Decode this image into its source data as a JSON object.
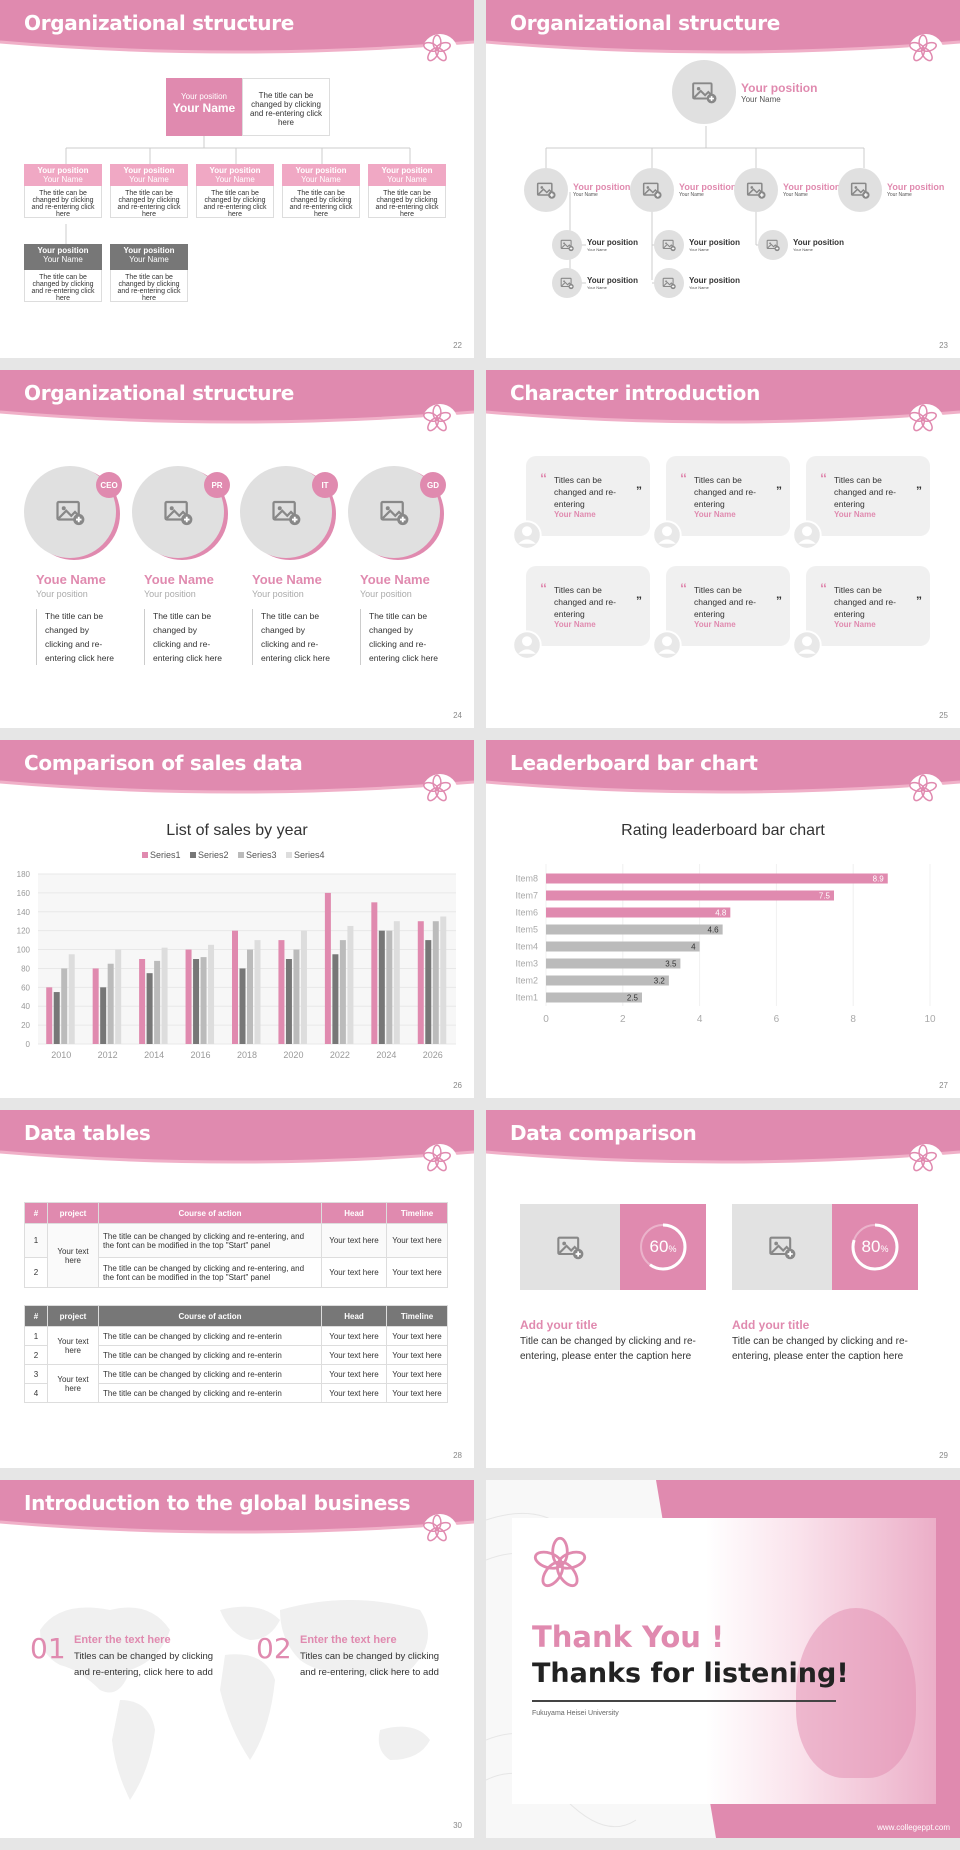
{
  "colors": {
    "accent": "#e08aaf",
    "accent_light": "#f0b0c8",
    "gray_dark": "#777777",
    "gray_mid": "#bbbbbb",
    "gray_light": "#dddddd"
  },
  "slides": {
    "s22": {
      "title": "Organizational structure",
      "page": "22",
      "top": {
        "position": "Your position",
        "name": "Your Name",
        "desc": "The title can be changed by clicking and re-entering click here"
      },
      "row1": [
        {
          "position": "Your position",
          "name": "Your Name",
          "desc": "The title can be changed by clicking and re-entering click here"
        },
        {
          "position": "Your position",
          "name": "Your Name",
          "desc": "The title can be changed by clicking and re-entering click here"
        },
        {
          "position": "Your position",
          "name": "Your Name",
          "desc": "The title can be changed by clicking and re-entering click here"
        },
        {
          "position": "Your position",
          "name": "Your Name",
          "desc": "The title can be changed by clicking and re-entering click here"
        },
        {
          "position": "Your position",
          "name": "Your Name",
          "desc": "The title can be changed by clicking and re-entering click here"
        }
      ],
      "row2": [
        {
          "position": "Your position",
          "name": "Your Name",
          "desc": "The title can be changed by clicking and re-entering click here"
        },
        {
          "position": "Your position",
          "name": "Your Name",
          "desc": "The title can be changed by clicking and re-entering click here"
        }
      ]
    },
    "s23": {
      "title": "Organizational structure",
      "page": "23",
      "top": {
        "position": "Your position",
        "name": "Your Name"
      },
      "mid": [
        {
          "position": "Your position",
          "name": "Your Name"
        },
        {
          "position": "Your position",
          "name": "Your Name"
        },
        {
          "position": "Your position",
          "name": "Your Name"
        },
        {
          "position": "Your position",
          "name": "Your Name"
        }
      ],
      "sub": [
        {
          "position": "Your position",
          "name": "Your Name"
        },
        {
          "position": "Your position",
          "name": "Your Name"
        },
        {
          "position": "Your position",
          "name": "Your Name"
        },
        {
          "position": "Your position",
          "name": "Your Name"
        },
        {
          "position": "Your position",
          "name": "Your Name"
        },
        {
          "position": "Your position",
          "name": "Your Name"
        }
      ]
    },
    "s24": {
      "title": "Organizational structure",
      "page": "24",
      "people": [
        {
          "badge": "CEO",
          "name": "Youe Name",
          "position": "Your position",
          "desc": "The title can be changed by clicking and re-entering click here"
        },
        {
          "badge": "PR",
          "name": "Youe Name",
          "position": "Your position",
          "desc": "The title can be changed by clicking and re-entering click here"
        },
        {
          "badge": "IT",
          "name": "Youe Name",
          "position": "Your position",
          "desc": "The title can be changed by clicking and re-entering click here"
        },
        {
          "badge": "GD",
          "name": "Youe Name",
          "position": "Your position",
          "desc": "The title can be changed by clicking and re-entering click here"
        }
      ]
    },
    "s25": {
      "title": "Character introduction",
      "page": "25",
      "cards": [
        {
          "text": "Titles can be changed and re-entering",
          "name": "Your Name"
        },
        {
          "text": "Titles can be changed and re-entering",
          "name": "Your Name"
        },
        {
          "text": "Titles can be changed and re-entering",
          "name": "Your Name"
        },
        {
          "text": "Titles can be changed and re-entering",
          "name": "Your Name"
        },
        {
          "text": "Titles can be changed and re-entering",
          "name": "Your Name"
        },
        {
          "text": "Titles can be changed and re-entering",
          "name": "Your Name"
        }
      ]
    },
    "s26": {
      "title": "Comparison of sales data",
      "page": "26"
    },
    "s27": {
      "title": "Leaderboard bar chart",
      "page": "27"
    },
    "s28": {
      "title": "Data tables",
      "page": "28",
      "headers": [
        "#",
        "project",
        "Course of action",
        "Head",
        "Timeline"
      ],
      "t1": {
        "project": "Your text here",
        "rows": [
          {
            "n": "1",
            "action": "The title can be changed by clicking and re-entering, and the font can be modified in the top \"Start\" panel",
            "head": "Your text here",
            "time": "Your text here"
          },
          {
            "n": "2",
            "action": "The title can be changed by clicking and re-entering, and the font can be modified in the top \"Start\" panel",
            "head": "Your text here",
            "time": "Your text here"
          }
        ]
      },
      "t2": {
        "project1": "Your text here",
        "project2": "Your text here",
        "rows": [
          {
            "n": "1",
            "action": "The title can be changed by clicking and re-enterin",
            "head": "Your text here",
            "time": "Your text here"
          },
          {
            "n": "2",
            "action": "The title can be changed by clicking and re-enterin",
            "head": "Your text here",
            "time": "Your text here"
          },
          {
            "n": "3",
            "action": "The title can be changed by clicking and re-enterin",
            "head": "Your text here",
            "time": "Your text here"
          },
          {
            "n": "4",
            "action": "The title can be changed by clicking and re-enterin",
            "head": "Your text here",
            "time": "Your text here"
          }
        ]
      }
    },
    "s29": {
      "title": "Data comparison",
      "page": "29",
      "items": [
        {
          "value": "60",
          "pct": "%",
          "progress": 0.6,
          "heading": "Add your title",
          "desc": "Title can be changed by clicking and re-entering, please enter the caption here"
        },
        {
          "value": "80",
          "pct": "%",
          "progress": 0.8,
          "heading": "Add your title",
          "desc": "Title can be changed by clicking and re-entering, please enter the caption here"
        }
      ]
    },
    "s30": {
      "title": "Introduction to the global business",
      "page": "30",
      "items": [
        {
          "num": "01",
          "heading": "Enter the text here",
          "desc": "Titles can be changed by clicking and re-entering, click here to add"
        },
        {
          "num": "02",
          "heading": "Enter the text here",
          "desc": "Titles can be changed by clicking and re-entering, click here to add"
        }
      ]
    },
    "s31": {
      "thank": "Thank You !",
      "listening": "Thanks for listening!",
      "university": "Fukuyama Heisei University",
      "url": "www.collegeppt.com"
    }
  },
  "chart_data": [
    {
      "type": "bar",
      "title": "List of sales by year",
      "categories": [
        "2010",
        "2012",
        "2014",
        "2016",
        "2018",
        "2020",
        "2022",
        "2024",
        "2026"
      ],
      "series": [
        {
          "name": "Series1",
          "color": "#e08aaf",
          "values": [
            60,
            80,
            90,
            100,
            120,
            110,
            160,
            150,
            130
          ]
        },
        {
          "name": "Series2",
          "color": "#777777",
          "values": [
            55,
            60,
            75,
            90,
            80,
            90,
            95,
            120,
            110
          ]
        },
        {
          "name": "Series3",
          "color": "#bbbbbb",
          "values": [
            80,
            85,
            88,
            92,
            100,
            100,
            110,
            120,
            130
          ]
        },
        {
          "name": "Series4",
          "color": "#dddddd",
          "values": [
            95,
            100,
            102,
            105,
            110,
            120,
            125,
            130,
            135
          ]
        }
      ],
      "ylim": [
        0,
        180
      ],
      "yticks": [
        0,
        20,
        40,
        60,
        80,
        100,
        120,
        140,
        160,
        180
      ],
      "legend": "top"
    },
    {
      "type": "bar",
      "orientation": "horizontal",
      "title": "Rating leaderboard bar chart",
      "categories": [
        "Item8",
        "Item7",
        "Item6",
        "Item5",
        "Item4",
        "Item3",
        "Item2",
        "Item1"
      ],
      "values": [
        8.9,
        7.5,
        4.8,
        4.6,
        4,
        3.5,
        3.2,
        2.5
      ],
      "colors": [
        "#e08aaf",
        "#e08aaf",
        "#e08aaf",
        "#bbbbbb",
        "#bbbbbb",
        "#bbbbbb",
        "#bbbbbb",
        "#bbbbbb"
      ],
      "xlim": [
        0,
        10
      ],
      "xticks": [
        0,
        2,
        4,
        6,
        8,
        10
      ]
    }
  ]
}
